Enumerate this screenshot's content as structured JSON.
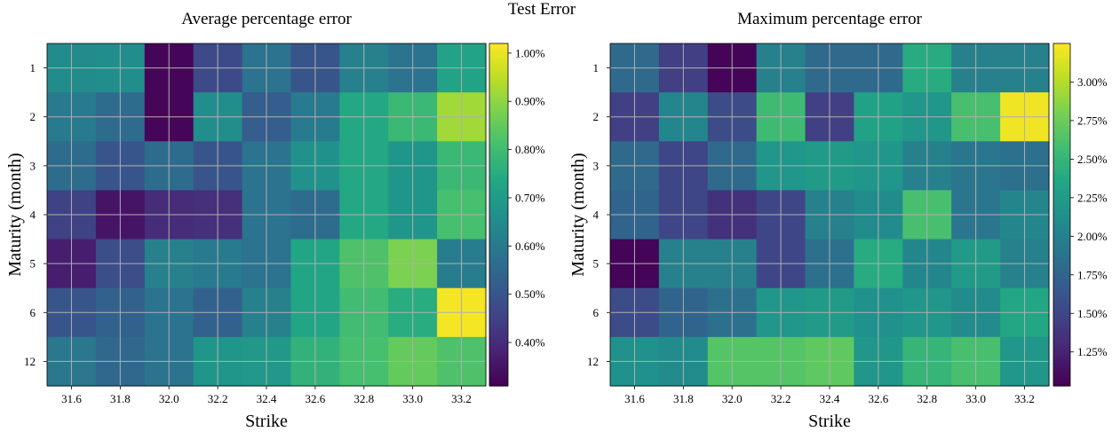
{
  "figure": {
    "suptitle": "Test Error"
  },
  "chart_data": [
    {
      "type": "heatmap",
      "title": "Average percentage error",
      "xlabel": "Strike",
      "ylabel": "Maturity (month)",
      "x": [
        "31.6",
        "31.8",
        "32.0",
        "32.2",
        "32.4",
        "32.6",
        "32.8",
        "33.0",
        "33.2"
      ],
      "y": [
        "1",
        "2",
        "3",
        "4",
        "5",
        "6",
        "12"
      ],
      "values": [
        [
          0.65,
          0.66,
          0.32,
          0.47,
          0.58,
          0.5,
          0.62,
          0.58,
          0.72
        ],
        [
          0.6,
          0.56,
          0.32,
          0.66,
          0.52,
          0.6,
          0.74,
          0.79,
          0.92
        ],
        [
          0.56,
          0.5,
          0.56,
          0.5,
          0.58,
          0.67,
          0.74,
          0.68,
          0.79
        ],
        [
          0.45,
          0.35,
          0.4,
          0.41,
          0.58,
          0.56,
          0.74,
          0.68,
          0.81
        ],
        [
          0.37,
          0.48,
          0.62,
          0.6,
          0.58,
          0.73,
          0.82,
          0.88,
          0.61
        ],
        [
          0.5,
          0.53,
          0.58,
          0.53,
          0.62,
          0.73,
          0.8,
          0.75,
          1.01
        ],
        [
          0.59,
          0.55,
          0.58,
          0.68,
          0.69,
          0.77,
          0.81,
          0.85,
          0.82
        ]
      ],
      "colorbar": {
        "range": [
          0.31,
          1.02
        ],
        "ticks": [
          "0.40%",
          "0.50%",
          "0.60%",
          "0.70%",
          "0.80%",
          "0.90%",
          "1.00%"
        ],
        "tick_values": [
          0.4,
          0.5,
          0.6,
          0.7,
          0.8,
          0.9,
          1.0
        ]
      },
      "colormap": "viridis",
      "grid": true
    },
    {
      "type": "heatmap",
      "title": "Maximum percentage error",
      "xlabel": "Strike",
      "ylabel": "Maturity (month)",
      "x": [
        "31.6",
        "31.8",
        "32.0",
        "32.2",
        "32.4",
        "32.6",
        "32.8",
        "33.0",
        "33.2"
      ],
      "y": [
        "1",
        "2",
        "3",
        "4",
        "5",
        "6",
        "12"
      ],
      "values": [
        [
          1.8,
          1.45,
          1.05,
          2.0,
          1.8,
          1.8,
          2.4,
          2.0,
          2.0
        ],
        [
          1.45,
          2.05,
          1.55,
          2.55,
          1.45,
          2.3,
          2.2,
          2.6,
          3.2
        ],
        [
          1.8,
          1.5,
          1.8,
          2.2,
          2.25,
          2.2,
          2.0,
          1.9,
          1.85
        ],
        [
          1.75,
          1.5,
          1.35,
          1.5,
          2.0,
          2.1,
          2.6,
          1.9,
          2.05
        ],
        [
          1.05,
          2.0,
          2.0,
          1.5,
          1.85,
          2.4,
          2.05,
          2.25,
          2.0
        ],
        [
          1.55,
          1.75,
          1.85,
          2.2,
          2.25,
          2.15,
          2.2,
          2.1,
          2.35
        ],
        [
          2.15,
          2.1,
          2.65,
          2.65,
          2.7,
          2.2,
          2.5,
          2.6,
          2.2
        ]
      ],
      "colorbar": {
        "range": [
          1.03,
          3.25
        ],
        "ticks": [
          "1.25%",
          "1.50%",
          "1.75%",
          "2.00%",
          "2.25%",
          "2.50%",
          "2.75%",
          "3.00%"
        ],
        "tick_values": [
          1.25,
          1.5,
          1.75,
          2.0,
          2.25,
          2.5,
          2.75,
          3.0
        ]
      },
      "colormap": "viridis",
      "grid": true
    }
  ]
}
